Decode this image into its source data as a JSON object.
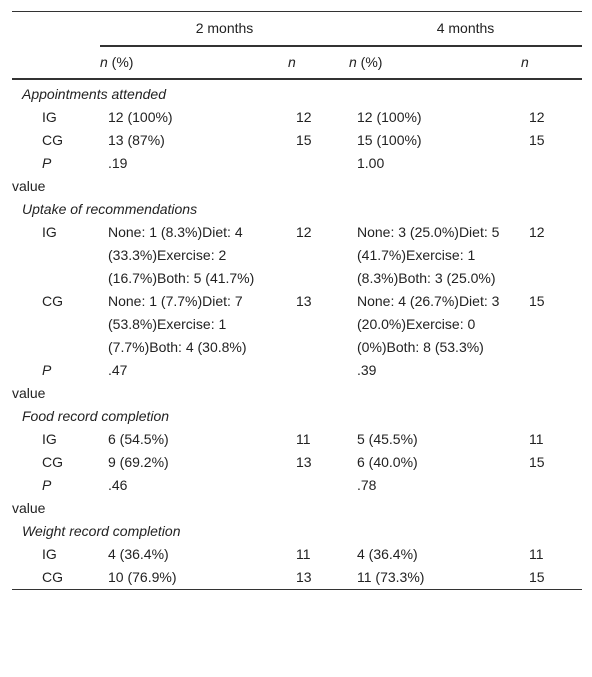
{
  "header": {
    "groups": [
      "2 months",
      "4 months"
    ],
    "subheaders": [
      {
        "italic": "n",
        "text": " (%)"
      },
      {
        "italic": "n"
      },
      {
        "italic": "n",
        "text": " (%)"
      },
      {
        "italic": "n"
      }
    ]
  },
  "sections": [
    {
      "title": "Appointments attended",
      "rows": [
        {
          "label": "IG",
          "cells": [
            "12 (100%)",
            "12",
            "12 (100%)",
            "12"
          ]
        },
        {
          "label": "CG",
          "cells": [
            "13 (87%)",
            "15",
            "15 (100%)",
            "15"
          ]
        },
        {
          "label_italic": "P",
          "label": "value",
          "cells": [
            ".19",
            null,
            "1.00",
            null
          ]
        }
      ]
    },
    {
      "title": "Uptake of recommendations",
      "rows": [
        {
          "label": "IG",
          "cells": [
            "None: 1 (8.3%)Diet: 4 (33.3%)Exercise: 2 (16.7%)Both: 5 (41.7%)",
            "12",
            "None: 3 (25.0%)Diet: 5 (41.7%)Exercise: 1 (8.3%)Both: 3 (25.0%)",
            "12"
          ]
        },
        {
          "label": "CG",
          "cells": [
            "None: 1 (7.7%)Diet: 7 (53.8%)Exercise: 1 (7.7%)Both: 4 (30.8%)",
            "13",
            "None: 4 (26.7%)Diet: 3 (20.0%)Exercise: 0 (0%)Both: 8 (53.3%)",
            "15"
          ]
        },
        {
          "label_italic": "P",
          "label": "value",
          "cells": [
            ".47",
            null,
            ".39",
            null
          ]
        }
      ]
    },
    {
      "title": "Food record completion",
      "rows": [
        {
          "label": "IG",
          "cells": [
            "6 (54.5%)",
            "11",
            "5 (45.5%)",
            "11"
          ]
        },
        {
          "label": "CG",
          "cells": [
            "9 (69.2%)",
            "13",
            "6 (40.0%)",
            "15"
          ]
        },
        {
          "label_italic": "P",
          "label": "value",
          "cells": [
            ".46",
            null,
            ".78",
            null
          ]
        }
      ]
    },
    {
      "title": "Weight record completion",
      "rows": [
        {
          "label": "IG",
          "cells": [
            "4 (36.4%)",
            "11",
            "4 (36.4%)",
            "11"
          ]
        },
        {
          "label": "CG",
          "cells": [
            "10 (76.9%)",
            "13",
            "11 (73.3%)",
            "15"
          ]
        }
      ]
    }
  ]
}
